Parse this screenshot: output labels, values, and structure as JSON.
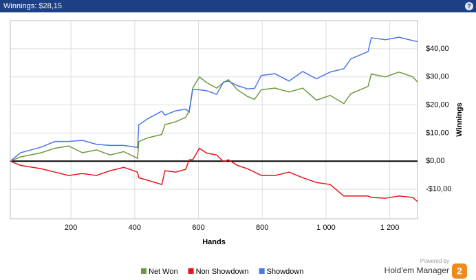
{
  "header": {
    "title": "Winnings: $28,15",
    "help": "?"
  },
  "chart_data": {
    "type": "line",
    "xlabel": "Hands",
    "ylabel": "Winnings",
    "x": [
      10,
      42,
      107,
      150,
      193,
      236,
      280,
      323,
      366,
      409,
      413,
      441,
      485,
      495,
      528,
      560,
      571,
      582,
      603,
      625,
      657,
      679,
      694,
      722,
      754,
      776,
      797,
      840,
      884,
      927,
      970,
      1013,
      1056,
      1078,
      1132,
      1142,
      1186,
      1229,
      1272,
      1287
    ],
    "series": [
      {
        "name": "Net Won",
        "color": "#6b9a3c",
        "values": [
          0,
          1.5,
          3,
          4.6,
          5.4,
          3,
          4,
          2.2,
          3.4,
          1,
          7,
          8.3,
          9.5,
          13,
          14,
          15.6,
          18,
          26,
          30,
          28,
          26,
          28,
          29,
          25.4,
          23,
          22,
          25.4,
          26,
          24.6,
          26,
          21.7,
          23.4,
          20.5,
          24,
          26.6,
          31,
          30,
          31.7,
          30,
          28.15
        ]
      },
      {
        "name": "Non Showdown",
        "color": "#e8141a",
        "values": [
          0,
          -1.5,
          -2.7,
          -3.9,
          -5.1,
          -4.4,
          -5.1,
          -3.4,
          -2.2,
          -3.9,
          -5.9,
          -6.8,
          -8.3,
          -3.4,
          -3.9,
          -2.9,
          0.5,
          0.5,
          4.6,
          2.9,
          2.2,
          -0.2,
          0.5,
          -1.5,
          -2.7,
          -3.9,
          -5.1,
          -5.1,
          -3.9,
          -5.9,
          -7.6,
          -8.3,
          -12.4,
          -12.4,
          -12.4,
          -12.9,
          -13.2,
          -12.4,
          -12.9,
          -14.4
        ]
      },
      {
        "name": "Showdown",
        "color": "#4a78e6",
        "values": [
          0,
          3,
          5,
          7,
          7,
          7.4,
          6,
          5.6,
          5.6,
          4.9,
          12.9,
          15.1,
          17.8,
          16.4,
          17.9,
          18.5,
          17.5,
          25.5,
          25.4,
          25.1,
          23.8,
          28.2,
          28.5,
          26.9,
          25.7,
          25.9,
          30.5,
          31.1,
          28.5,
          31.9,
          29.3,
          31.7,
          32.9,
          36.4,
          39,
          43.9,
          43.2,
          44.1,
          42.9,
          42.55
        ]
      }
    ],
    "xlim": [
      10,
      1287
    ],
    "ylim": [
      -20.5,
      50
    ],
    "xticks": [
      200,
      400,
      600,
      800,
      {
        "value": 1000,
        "label": "1 000"
      },
      {
        "value": 1200,
        "label": "1 200"
      }
    ],
    "yticks": [
      {
        "value": -10,
        "label": "-$10,00"
      },
      {
        "value": 0,
        "label": "$0,00"
      },
      {
        "value": 10,
        "label": "$10,00"
      },
      {
        "value": 20,
        "label": "$20,00"
      },
      {
        "value": 30,
        "label": "$30,00"
      },
      {
        "value": 40,
        "label": "$40,00"
      }
    ],
    "grid": true,
    "legend": "bottom"
  },
  "footer": {
    "powered_by": "Powered by",
    "brand": "Hold'em Manager",
    "logo": "2"
  }
}
